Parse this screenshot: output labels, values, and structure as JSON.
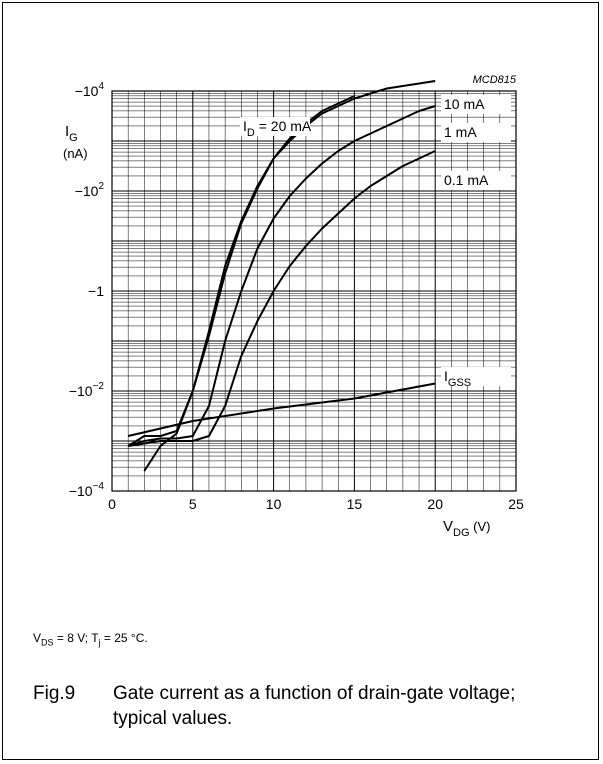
{
  "figure": {
    "code": "MCD815",
    "number": "Fig.9",
    "title": "Gate current as a function of drain-gate voltage; typical values.",
    "conditions": {
      "vds_symbol": "V",
      "vds_sub": "DS",
      "vds_text": " = 8 V; ",
      "tj_symbol": "T",
      "tj_sub": "j",
      "tj_text": " = 25 °C."
    }
  },
  "chart_data": {
    "type": "line",
    "title": "",
    "xlabel": {
      "symbol": "V",
      "sub": "DG",
      "unit": " (V)"
    },
    "ylabel": {
      "symbol": "I",
      "sub": "G",
      "unit": "(nA)"
    },
    "xlim": [
      0,
      25
    ],
    "y_scale": "log (magnitude, negative values)",
    "ylim_exponent": [
      -4,
      4
    ],
    "x_ticks": [
      0,
      5,
      10,
      15,
      20,
      25
    ],
    "x_tick_labels": [
      "0",
      "5",
      "10",
      "15",
      "20",
      "25"
    ],
    "y_ticks": [
      {
        "exp": 4,
        "base": "−10",
        "sup": "4"
      },
      {
        "exp": 2,
        "base": "−10",
        "sup": "2"
      },
      {
        "exp": 0,
        "base": "−1",
        "sup": ""
      },
      {
        "exp": -2,
        "base": "−10",
        "sup": "−2"
      },
      {
        "exp": -4,
        "base": "−10",
        "sup": "−4"
      }
    ],
    "grid": true,
    "series": [
      {
        "name": "I_D = 20 mA",
        "label_main": "I",
        "label_sub": "D",
        "label_rest": " = 20 mA",
        "x": [
          2,
          3,
          4,
          5,
          6,
          7,
          8,
          9,
          10,
          11,
          12,
          13,
          14,
          15
        ],
        "log10_y": [
          -3.6,
          -3.1,
          -2.85,
          -2.0,
          -0.8,
          0.5,
          1.4,
          2.1,
          2.65,
          3.05,
          3.35,
          3.6,
          3.75,
          3.9
        ]
      },
      {
        "name": "10 mA",
        "label_main": "10 mA",
        "label_sub": "",
        "label_rest": "",
        "x": [
          1,
          2,
          3,
          4,
          5,
          6,
          7,
          8,
          9,
          10,
          11,
          12,
          13,
          14,
          15,
          16,
          17,
          18,
          19,
          20
        ],
        "log10_y": [
          -3.1,
          -2.9,
          -2.9,
          -2.8,
          -2.0,
          -0.9,
          0.35,
          1.35,
          2.05,
          2.65,
          3.0,
          3.3,
          3.55,
          3.7,
          3.85,
          3.95,
          4.05,
          4.1,
          4.15,
          4.2
        ]
      },
      {
        "name": "1 mA",
        "label_main": "1 mA",
        "label_sub": "",
        "label_rest": "",
        "x": [
          1,
          2,
          3,
          4,
          5,
          6,
          7,
          8,
          9,
          10,
          11,
          12,
          13,
          14,
          15,
          16,
          17,
          18,
          19,
          20
        ],
        "log10_y": [
          -3.1,
          -3.0,
          -2.95,
          -2.95,
          -2.9,
          -2.3,
          -1.0,
          0.0,
          0.85,
          1.45,
          1.9,
          2.25,
          2.55,
          2.8,
          3.0,
          3.15,
          3.3,
          3.45,
          3.6,
          3.7
        ]
      },
      {
        "name": "0.1 mA",
        "label_main": "0.1 mA",
        "label_sub": "",
        "label_rest": "",
        "x": [
          1,
          2,
          3,
          4,
          5,
          6,
          7,
          8,
          9,
          10,
          11,
          12,
          13,
          14,
          15,
          16,
          17,
          18,
          19,
          20
        ],
        "log10_y": [
          -3.1,
          -3.05,
          -3.0,
          -3.0,
          -3.0,
          -2.9,
          -2.3,
          -1.3,
          -0.6,
          0.0,
          0.5,
          0.9,
          1.25,
          1.55,
          1.85,
          2.1,
          2.3,
          2.5,
          2.65,
          2.8
        ]
      },
      {
        "name": "I_GSS",
        "label_main": "I",
        "label_sub": "GSS",
        "label_rest": "",
        "x": [
          1,
          5,
          10,
          15,
          20
        ],
        "log10_y": [
          -2.9,
          -2.6,
          -2.35,
          -2.15,
          -1.85
        ]
      }
    ]
  }
}
